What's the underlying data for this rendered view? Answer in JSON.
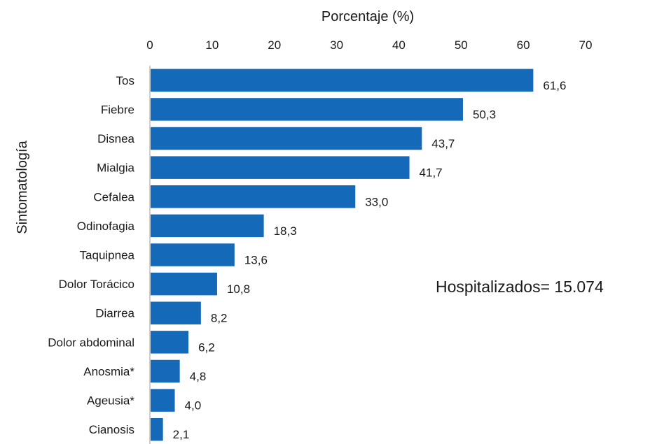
{
  "chart_data": {
    "type": "bar",
    "orientation": "horizontal",
    "xlabel": "Porcentaje (%)",
    "ylabel": "Sintomatología",
    "xlim": [
      0,
      70
    ],
    "x_ticks": [
      "0",
      "10",
      "20",
      "30",
      "40",
      "50",
      "60",
      "70"
    ],
    "categories": [
      "Tos",
      "Fiebre",
      "Disnea",
      "Mialgia",
      "Cefalea",
      "Odinofagia",
      "Taquipnea",
      "Dolor Torácico",
      "Diarrea",
      "Dolor abdominal",
      "Anosmia*",
      "Ageusia*",
      "Cianosis"
    ],
    "values": [
      61.6,
      50.3,
      43.7,
      41.7,
      33.0,
      18.3,
      13.6,
      10.8,
      8.2,
      6.2,
      4.8,
      4.0,
      2.1
    ],
    "value_labels": [
      "61,6",
      "50,3",
      "43,7",
      "41,7",
      "33,0",
      "18,3",
      "13,6",
      "10,8",
      "8,2",
      "6,2",
      "4,8",
      "4,0",
      "2,1"
    ],
    "annotation": "Hospitalizados= 15.074",
    "bar_color": "#1469b9",
    "x_axis_position": "top",
    "grid": false
  }
}
